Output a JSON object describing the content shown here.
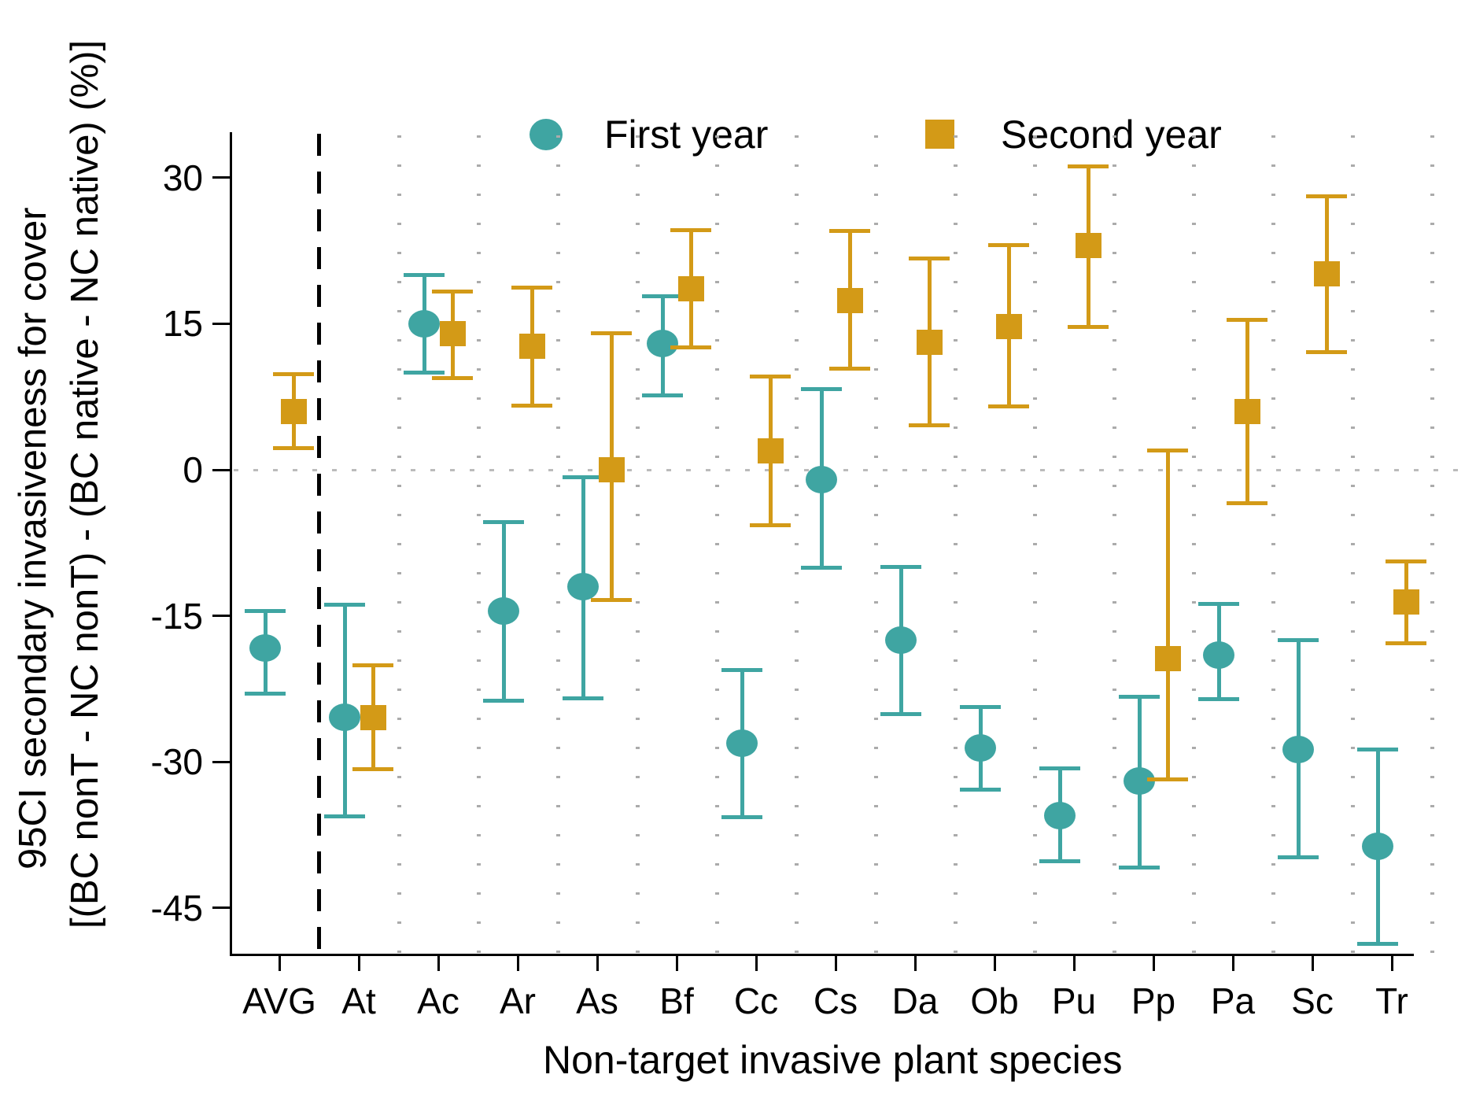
{
  "chart_data": {
    "type": "errorbar-scatter",
    "title": "",
    "categories": [
      "AVG",
      "At",
      "Ac",
      "Ar",
      "As",
      "Bf",
      "Cc",
      "Cs",
      "Da",
      "Ob",
      "Pu",
      "Pp",
      "Pa",
      "Sc",
      "Tr"
    ],
    "series": [
      {
        "name": "First year",
        "marker": "circle",
        "color": "#3FA5A2",
        "means": [
          -18.3,
          -25.4,
          15.0,
          -14.5,
          -12.0,
          13.0,
          -28.1,
          -1.0,
          -17.5,
          -28.6,
          -35.5,
          -32.0,
          -19.0,
          -28.7,
          -38.7
        ],
        "ci_high": [
          -14.5,
          -13.9,
          20.0,
          -5.4,
          -0.8,
          17.8,
          -20.6,
          8.3,
          -10.0,
          -24.4,
          -30.7,
          -23.3,
          -13.8,
          -17.5,
          -28.7
        ],
        "ci_low": [
          -23.0,
          -35.6,
          10.0,
          -23.7,
          -23.5,
          7.6,
          -35.7,
          -10.1,
          -25.1,
          -32.9,
          -40.2,
          -40.9,
          -23.6,
          -39.8,
          -48.7
        ]
      },
      {
        "name": "Second year",
        "marker": "square",
        "color": "#D39A17",
        "means": [
          6.0,
          -25.5,
          14.0,
          12.7,
          0.0,
          18.6,
          1.9,
          17.4,
          13.1,
          14.7,
          23.0,
          -19.4,
          6.0,
          20.1,
          -13.6
        ],
        "ci_high": [
          9.8,
          -20.1,
          18.3,
          18.7,
          14.0,
          24.6,
          9.6,
          24.5,
          21.7,
          23.1,
          31.2,
          2.0,
          15.4,
          28.1,
          -9.4
        ],
        "ci_low": [
          2.2,
          -30.8,
          9.4,
          6.6,
          -13.4,
          12.6,
          -5.7,
          10.4,
          4.6,
          6.5,
          14.7,
          -31.8,
          -3.4,
          12.1,
          -17.8
        ]
      }
    ],
    "yticks": [
      30,
      15,
      0,
      -15,
      -30,
      -45
    ],
    "ylim": [
      -52,
      35
    ],
    "zero_reference_line": 0,
    "divider_after_category": "AVG",
    "grid": "dotted vertical separators between species columns; dotted horizontal line at 0",
    "legend_position": "top-center",
    "ylabel_line1": "95CI secondary invasiveness for cover",
    "ylabel_line2": "[(BC nonT - NC nonT) - (BC native - NC native) (%)]",
    "xlabel": "Non-target invasive plant species"
  },
  "legend": {
    "first_label": "First year",
    "second_label": "Second year"
  },
  "colors": {
    "first_year": "#3FA5A2",
    "second_year": "#D39A17",
    "axis": "#000000",
    "dashed_divider": "#000000",
    "dotted_grid": "#ababab",
    "zero_line": "#bbbbbb"
  }
}
